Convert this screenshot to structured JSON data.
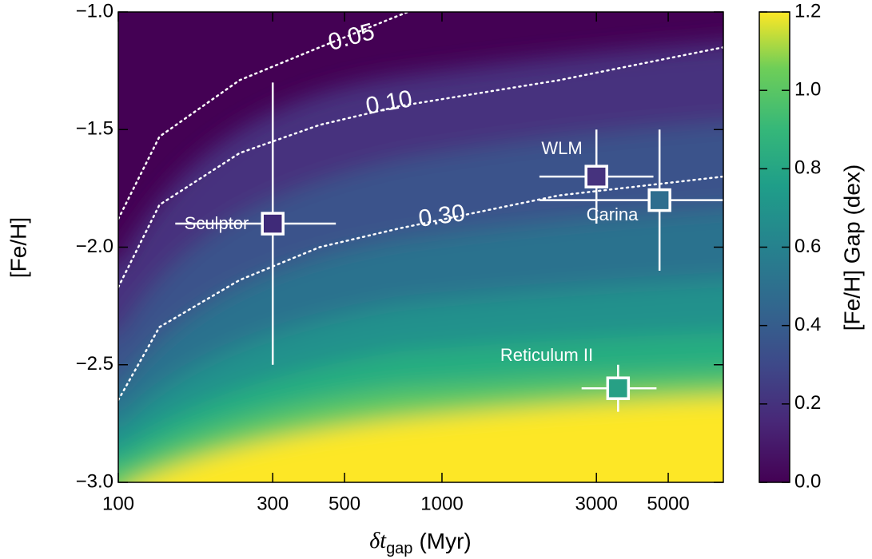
{
  "chart_data": {
    "type": "heatmap-scatter",
    "xlabel": {
      "main": "δt",
      "sub": "gap",
      "unit": "(Myr)"
    },
    "ylabel": "[Fe/H]",
    "colorbar_label": "[Fe/H] Gap (dex)",
    "xscale": "log",
    "xlim": [
      100,
      7400
    ],
    "xticks": [
      100,
      300,
      500,
      1000,
      3000,
      5000
    ],
    "ylim": [
      -3.0,
      -1.0
    ],
    "yticks": [
      {
        "value": -1.0,
        "label": "−1.0"
      },
      {
        "value": -1.5,
        "label": "−1.5"
      },
      {
        "value": -2.0,
        "label": "−2.0"
      },
      {
        "value": -2.5,
        "label": "−2.5"
      },
      {
        "value": -3.0,
        "label": "−3.0"
      }
    ],
    "colormap": "viridis",
    "clim": [
      0.0,
      1.2
    ],
    "cticks": [
      {
        "value": 0.0,
        "label": "0.0"
      },
      0.2,
      0.4,
      0.6,
      0.8,
      {
        "value": 1.0,
        "label": "1.0"
      },
      1.2
    ],
    "contours": [
      {
        "level": {
          "value": 0.05,
          "label": "0.05"
        },
        "x": [
          100,
          134,
          237,
          419,
          783
        ],
        "y": [
          -1.88,
          -1.53,
          -1.29,
          -1.15,
          -1.0
        ]
      },
      {
        "level": {
          "value": 0.1,
          "label": "0.10"
        },
        "x": [
          100,
          134,
          237,
          419,
          740,
          2300,
          7400
        ],
        "y": [
          -2.17,
          -1.82,
          -1.6,
          -1.48,
          -1.4,
          -1.29,
          -1.15
        ]
      },
      {
        "level": {
          "value": 0.3,
          "label": "0.30"
        },
        "x": [
          100,
          134,
          237,
          419,
          740,
          2300,
          7400
        ],
        "y": [
          -2.65,
          -2.34,
          -2.14,
          -2.0,
          -1.92,
          -1.78,
          -1.7
        ]
      }
    ],
    "points": [
      {
        "name": "Sculptor",
        "x": 300,
        "y": -1.9,
        "xmin": 150,
        "xmax": 470,
        "ymin": -2.5,
        "ymax": -1.3,
        "color": "#3f2a78"
      },
      {
        "name": "WLM",
        "x": 3000,
        "y": -1.7,
        "xmin": 2000,
        "xmax": 4500,
        "ymin": -1.9,
        "ymax": -1.5,
        "color": "#46337e"
      },
      {
        "name": "Carina",
        "x": 4700,
        "y": -1.8,
        "xmin": 2000,
        "xmax": 7400,
        "ymin": -2.1,
        "ymax": -1.5,
        "color": "#2e6e8e"
      },
      {
        "name": "Reticulum II",
        "x": 3500,
        "y": -2.6,
        "xmin": 2700,
        "xmax": 4600,
        "ymin": -2.7,
        "ymax": -2.5,
        "color": "#27a085"
      }
    ]
  }
}
